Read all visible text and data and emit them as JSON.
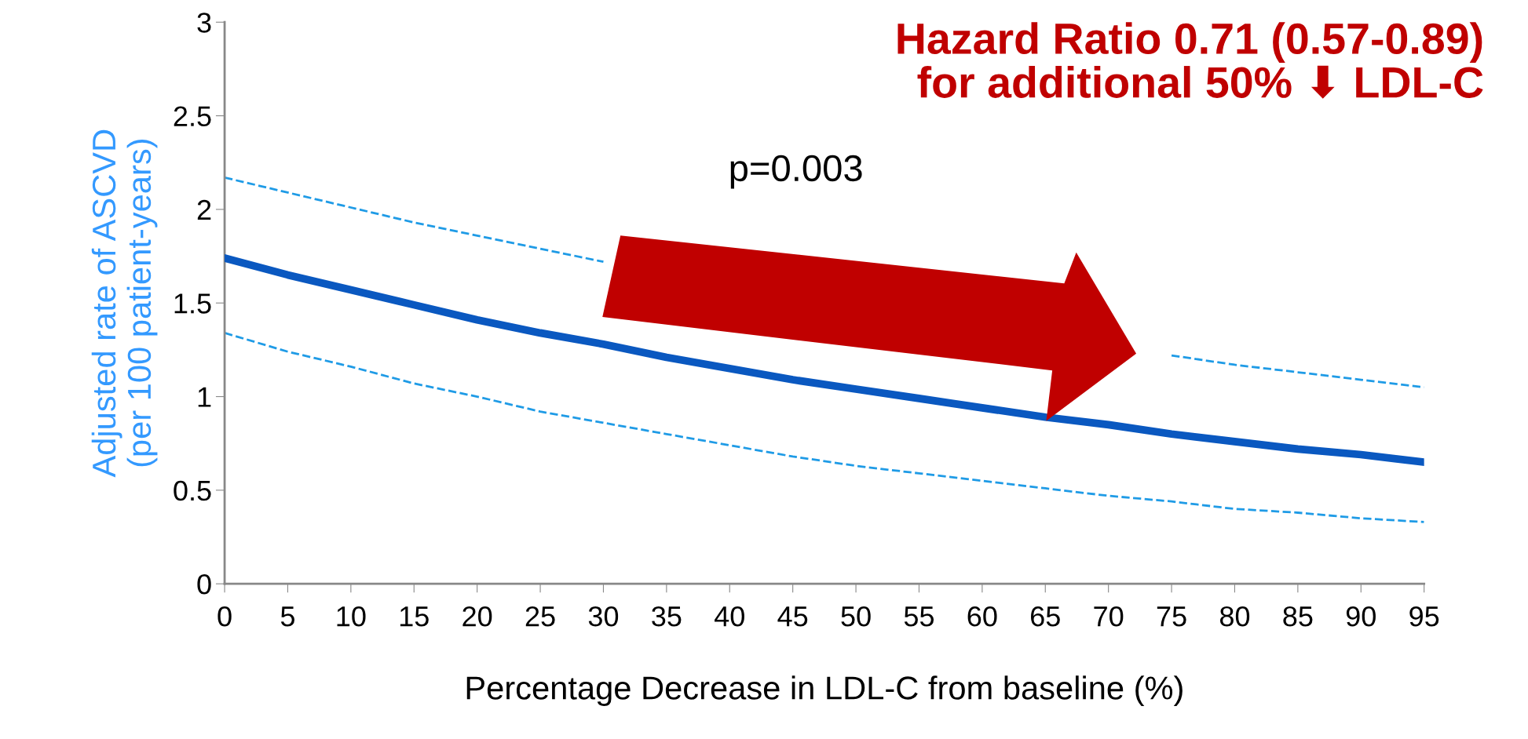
{
  "chart_data": {
    "type": "line",
    "xlabel": "Percentage Decrease in LDL-C from baseline (%)",
    "ylabel": "Adjusted rate of ASCVD\n(per 100 patient-years)",
    "x": [
      0,
      5,
      10,
      15,
      20,
      25,
      30,
      35,
      40,
      45,
      50,
      55,
      60,
      65,
      70,
      75,
      80,
      85,
      90,
      95
    ],
    "series": [
      {
        "color": "#1f9be6",
        "line_style": "dashed",
        "values": [
          2.17,
          2.09,
          2.01,
          1.93,
          1.86,
          1.79,
          1.72,
          null,
          null,
          null,
          null,
          null,
          null,
          null,
          null,
          1.22,
          1.17,
          1.13,
          1.09,
          1.05
        ]
      },
      {
        "color": "#0a58c0",
        "line_style": "solid",
        "values": [
          1.74,
          1.65,
          1.57,
          1.49,
          1.41,
          1.34,
          1.28,
          1.21,
          1.15,
          1.09,
          1.04,
          0.99,
          0.94,
          0.89,
          0.85,
          0.8,
          0.76,
          0.72,
          0.69,
          0.65
        ]
      },
      {
        "color": "#1f9be6",
        "line_style": "dashed",
        "values": [
          1.34,
          1.24,
          1.16,
          1.07,
          1.0,
          0.92,
          0.86,
          0.8,
          0.74,
          0.68,
          0.63,
          0.59,
          0.55,
          0.51,
          0.47,
          0.44,
          0.4,
          0.38,
          0.35,
          0.33
        ]
      }
    ],
    "xlim": [
      0,
      95
    ],
    "xticks": [
      0,
      5,
      10,
      15,
      20,
      25,
      30,
      35,
      40,
      45,
      50,
      55,
      60,
      65,
      70,
      75,
      80,
      85,
      90,
      95
    ],
    "ylim": [
      0,
      3
    ],
    "yticks": [
      0,
      0.5,
      1,
      1.5,
      2,
      2.5,
      3
    ],
    "grid": false,
    "legend": false,
    "annotations": [
      "Hazard Ratio 0.71 (0.57-0.89)\nfor additional 50% ⬇ LDL-C",
      "p=0.003"
    ]
  }
}
